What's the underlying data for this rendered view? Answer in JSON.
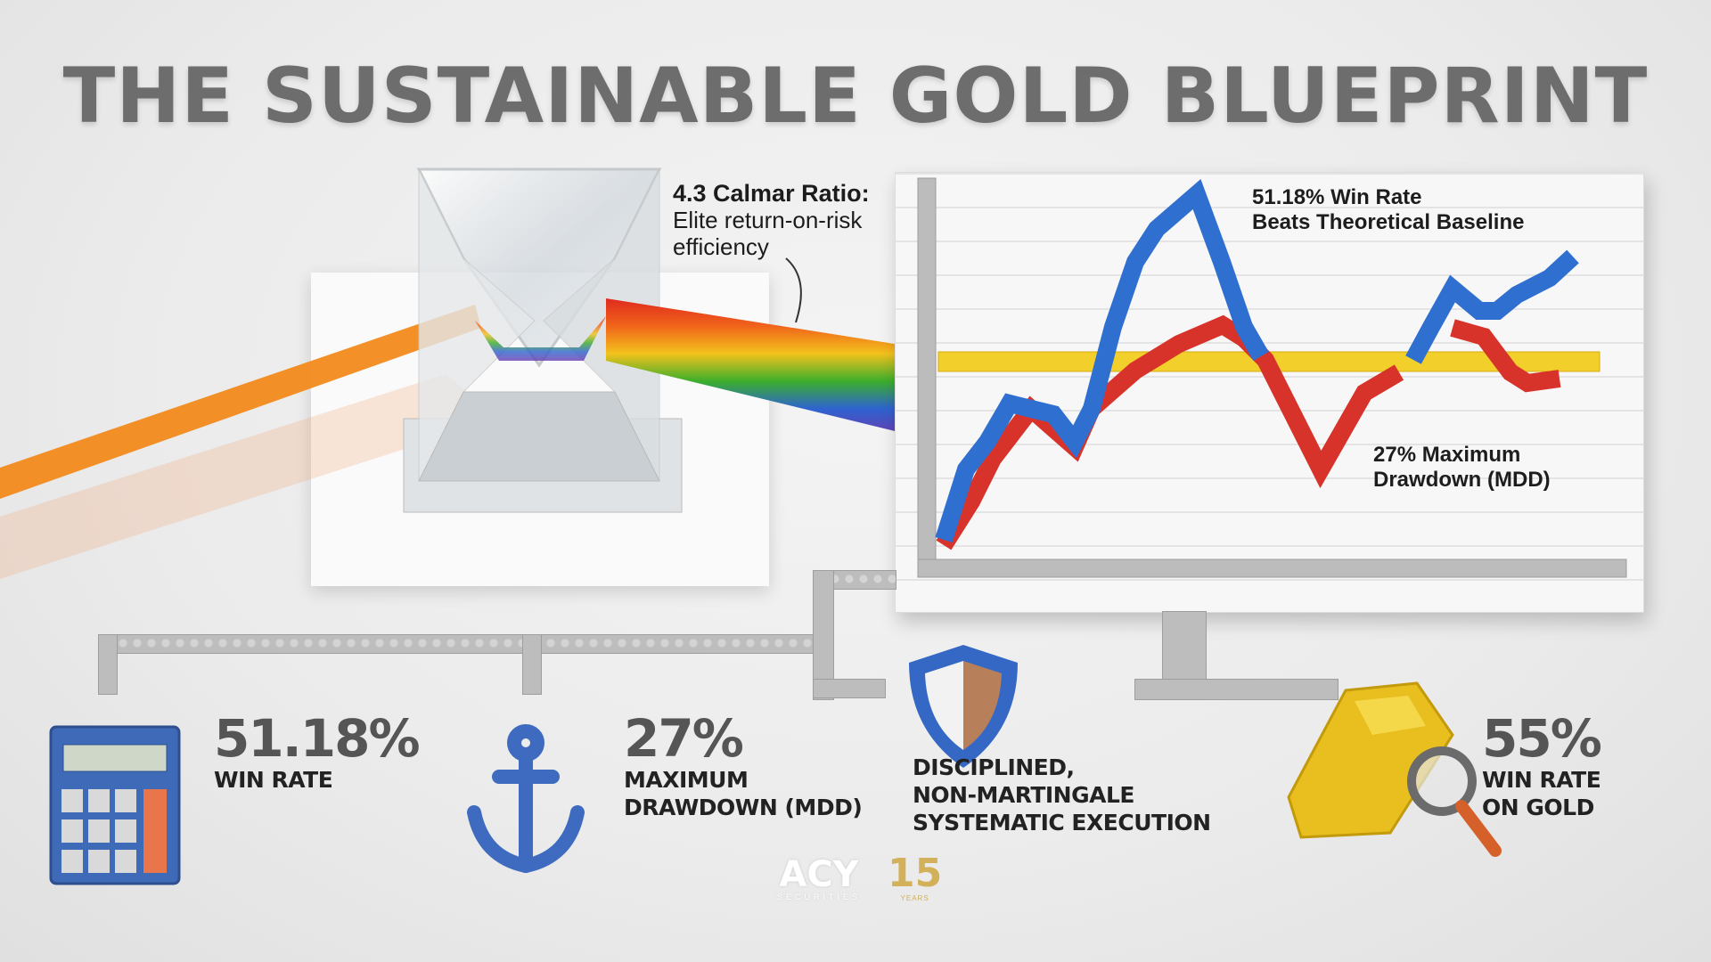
{
  "title": "THE SUSTAINABLE GOLD BLUEPRINT",
  "callout": {
    "heading": "4.3 Calmar Ratio:",
    "line1": "Elite return-on-risk",
    "line2": "efficiency"
  },
  "chart": {
    "annotation_top_line1": "51.18% Win Rate",
    "annotation_top_line2": "Beats Theoretical Baseline",
    "annotation_bottom_line1": "27% Maximum",
    "annotation_bottom_line2": "Drawdown (MDD)",
    "colors": {
      "strategy": "#2f6fd0",
      "drawdown": "#d8332a",
      "baseline": "#f2cf2a"
    }
  },
  "stats": [
    {
      "icon": "calculator-icon",
      "value": "51.18%",
      "label_line1": "WIN RATE",
      "label_line2": ""
    },
    {
      "icon": "anchor-icon",
      "value": "27%",
      "label_line1": "MAXIMUM",
      "label_line2": "DRAWDOWN (MDD)"
    },
    {
      "icon": "shield-icon",
      "value": "",
      "label_line1": "DISCIPLINED,",
      "label_line2": "NON-MARTINGALE",
      "label_line3": "SYSTEMATIC EXECUTION"
    },
    {
      "icon": "gold-bar-magnifier-icon",
      "value": "55%",
      "label_line1": "WIN RATE",
      "label_line2": "ON GOLD"
    }
  ],
  "logo": {
    "brand": "ACY",
    "sub": "SECURITIES",
    "anniversary": "15",
    "anniversary_sub": "YEARS"
  }
}
